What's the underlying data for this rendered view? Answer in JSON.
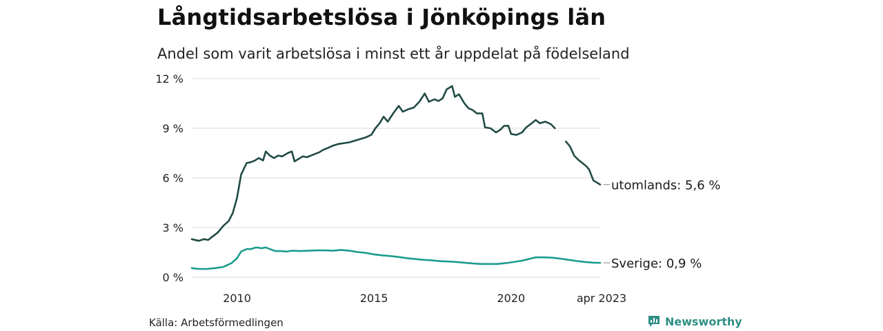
{
  "title": "Långtidsarbetslösa i Jönköpings län",
  "subtitle": "Andel som varit arbetslösa i minst ett år uppdelat på födelseland",
  "source": "Källa: Arbetsförmedlingen",
  "brand": {
    "name": "Newsworthy",
    "icon": "newsworthy-logo-icon",
    "color": "#2f8f86"
  },
  "chart_data": {
    "type": "line",
    "title": "Långtidsarbetslösa i Jönköpings län",
    "subtitle": "Andel som varit arbetslösa i minst ett år uppdelat på födelseland",
    "y_ticks": [
      "0 %",
      "3 %",
      "6 %",
      "9 %",
      "12 %"
    ],
    "y_tick_values": [
      0,
      3,
      6,
      9,
      12
    ],
    "ylim": [
      0,
      12
    ],
    "xlim": [
      2008.35,
      2023.25
    ],
    "x_ticks": [
      "2010",
      "2015",
      "2020",
      "apr 2023"
    ],
    "x_tick_values": [
      2010,
      2015,
      2020,
      2023.25
    ],
    "grid": true,
    "series": [
      {
        "name": "utomlands",
        "end_label": "utomlands: 5,6 %",
        "color": "#1f4a44",
        "points": [
          [
            2008.35,
            2.3
          ],
          [
            2008.6,
            2.2
          ],
          [
            2008.8,
            2.3
          ],
          [
            2008.95,
            2.25
          ],
          [
            2009.1,
            2.45
          ],
          [
            2009.3,
            2.7
          ],
          [
            2009.5,
            3.1
          ],
          [
            2009.7,
            3.4
          ],
          [
            2009.85,
            3.9
          ],
          [
            2010.0,
            4.8
          ],
          [
            2010.15,
            6.2
          ],
          [
            2010.35,
            6.9
          ],
          [
            2010.5,
            6.95
          ],
          [
            2010.65,
            7.05
          ],
          [
            2010.8,
            7.2
          ],
          [
            2010.95,
            7.05
          ],
          [
            2011.05,
            7.6
          ],
          [
            2011.2,
            7.35
          ],
          [
            2011.35,
            7.2
          ],
          [
            2011.5,
            7.35
          ],
          [
            2011.65,
            7.3
          ],
          [
            2011.85,
            7.5
          ],
          [
            2012.0,
            7.6
          ],
          [
            2012.1,
            7.0
          ],
          [
            2012.25,
            7.15
          ],
          [
            2012.4,
            7.3
          ],
          [
            2012.55,
            7.25
          ],
          [
            2012.7,
            7.35
          ],
          [
            2012.85,
            7.45
          ],
          [
            2013.0,
            7.55
          ],
          [
            2013.15,
            7.7
          ],
          [
            2013.3,
            7.8
          ],
          [
            2013.5,
            7.95
          ],
          [
            2013.7,
            8.05
          ],
          [
            2013.9,
            8.1
          ],
          [
            2014.1,
            8.15
          ],
          [
            2014.3,
            8.25
          ],
          [
            2014.5,
            8.35
          ],
          [
            2014.7,
            8.45
          ],
          [
            2014.9,
            8.6
          ],
          [
            2015.05,
            9.0
          ],
          [
            2015.2,
            9.3
          ],
          [
            2015.35,
            9.7
          ],
          [
            2015.5,
            9.4
          ],
          [
            2015.7,
            9.9
          ],
          [
            2015.9,
            10.35
          ],
          [
            2016.05,
            10.0
          ],
          [
            2016.25,
            10.15
          ],
          [
            2016.45,
            10.25
          ],
          [
            2016.65,
            10.6
          ],
          [
            2016.85,
            11.1
          ],
          [
            2017.0,
            10.6
          ],
          [
            2017.2,
            10.75
          ],
          [
            2017.35,
            10.65
          ],
          [
            2017.5,
            10.8
          ],
          [
            2017.65,
            11.35
          ],
          [
            2017.85,
            11.55
          ],
          [
            2017.95,
            10.9
          ],
          [
            2018.1,
            11.05
          ],
          [
            2018.3,
            10.5
          ],
          [
            2018.45,
            10.2
          ],
          [
            2018.6,
            10.1
          ],
          [
            2018.75,
            9.9
          ],
          [
            2018.95,
            9.9
          ],
          [
            2019.05,
            9.05
          ],
          [
            2019.25,
            9.0
          ],
          [
            2019.45,
            8.75
          ],
          [
            2019.6,
            8.9
          ],
          [
            2019.75,
            9.15
          ],
          [
            2019.9,
            9.15
          ],
          [
            2020.0,
            8.65
          ],
          [
            2020.2,
            8.6
          ],
          [
            2020.4,
            8.75
          ],
          [
            2020.55,
            9.05
          ],
          [
            2020.75,
            9.3
          ],
          [
            2020.9,
            9.5
          ],
          [
            2021.05,
            9.3
          ],
          [
            2021.25,
            9.4
          ],
          [
            2021.45,
            9.25
          ],
          [
            2021.6,
            9.0
          ]
        ],
        "points_after_gap": [
          [
            2022.0,
            8.2
          ],
          [
            2022.15,
            7.9
          ],
          [
            2022.3,
            7.35
          ],
          [
            2022.45,
            7.1
          ],
          [
            2022.6,
            6.9
          ],
          [
            2022.75,
            6.7
          ],
          [
            2022.85,
            6.5
          ],
          [
            2023.0,
            5.85
          ],
          [
            2023.15,
            5.7
          ],
          [
            2023.25,
            5.6
          ]
        ]
      },
      {
        "name": "Sverige",
        "end_label": "Sverige: 0,9 %",
        "color": "#1a9b8c",
        "points": [
          [
            2008.35,
            0.55
          ],
          [
            2008.6,
            0.5
          ],
          [
            2008.9,
            0.5
          ],
          [
            2009.2,
            0.55
          ],
          [
            2009.5,
            0.62
          ],
          [
            2009.8,
            0.85
          ],
          [
            2010.0,
            1.15
          ],
          [
            2010.15,
            1.55
          ],
          [
            2010.35,
            1.7
          ],
          [
            2010.5,
            1.7
          ],
          [
            2010.7,
            1.8
          ],
          [
            2010.9,
            1.75
          ],
          [
            2011.05,
            1.8
          ],
          [
            2011.2,
            1.7
          ],
          [
            2011.4,
            1.58
          ],
          [
            2011.6,
            1.58
          ],
          [
            2011.8,
            1.55
          ],
          [
            2012.0,
            1.6
          ],
          [
            2012.3,
            1.58
          ],
          [
            2012.6,
            1.6
          ],
          [
            2012.9,
            1.62
          ],
          [
            2013.2,
            1.62
          ],
          [
            2013.5,
            1.6
          ],
          [
            2013.8,
            1.65
          ],
          [
            2014.1,
            1.6
          ],
          [
            2014.4,
            1.52
          ],
          [
            2014.7,
            1.47
          ],
          [
            2015.0,
            1.38
          ],
          [
            2015.3,
            1.32
          ],
          [
            2015.6,
            1.28
          ],
          [
            2015.9,
            1.22
          ],
          [
            2016.2,
            1.15
          ],
          [
            2016.5,
            1.1
          ],
          [
            2016.8,
            1.05
          ],
          [
            2017.1,
            1.02
          ],
          [
            2017.4,
            0.97
          ],
          [
            2017.7,
            0.95
          ],
          [
            2018.0,
            0.92
          ],
          [
            2018.3,
            0.88
          ],
          [
            2018.6,
            0.83
          ],
          [
            2018.9,
            0.8
          ],
          [
            2019.2,
            0.8
          ],
          [
            2019.5,
            0.8
          ],
          [
            2019.8,
            0.85
          ],
          [
            2020.1,
            0.92
          ],
          [
            2020.4,
            1.0
          ],
          [
            2020.7,
            1.12
          ],
          [
            2020.9,
            1.2
          ],
          [
            2021.2,
            1.2
          ],
          [
            2021.5,
            1.18
          ],
          [
            2021.8,
            1.12
          ],
          [
            2022.1,
            1.05
          ],
          [
            2022.4,
            0.98
          ],
          [
            2022.7,
            0.92
          ],
          [
            2023.0,
            0.88
          ],
          [
            2023.25,
            0.87
          ]
        ]
      }
    ]
  }
}
